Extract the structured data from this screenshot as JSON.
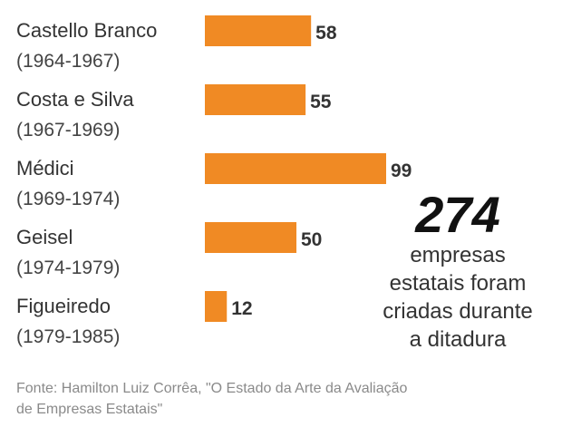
{
  "chart_data": {
    "type": "bar",
    "orientation": "horizontal",
    "categories": [
      {
        "name": "Castello Branco",
        "period": "(1964-1967)"
      },
      {
        "name": "Costa e Silva",
        "period": "(1967-1969)"
      },
      {
        "name": "Médici",
        "period": "(1969-1974)"
      },
      {
        "name": "Geisel",
        "period": "(1974-1979)"
      },
      {
        "name": "Figueiredo",
        "period": "(1979-1985)"
      }
    ],
    "values": [
      58,
      55,
      99,
      50,
      12
    ],
    "data_labels": [
      "58",
      "55",
      "99",
      "50",
      "12"
    ],
    "bar_color": "#F08A24",
    "xlim": [
      0,
      99
    ],
    "grid": false
  },
  "callout": {
    "number": "274",
    "lines": [
      "empresas",
      "estatais foram",
      "criadas durante",
      "a ditadura"
    ]
  },
  "source": {
    "lines": [
      "Fonte: Hamilton Luiz Corrêa, \"O Estado da Arte da Avaliação",
      "de Empresas Estatais\""
    ]
  }
}
